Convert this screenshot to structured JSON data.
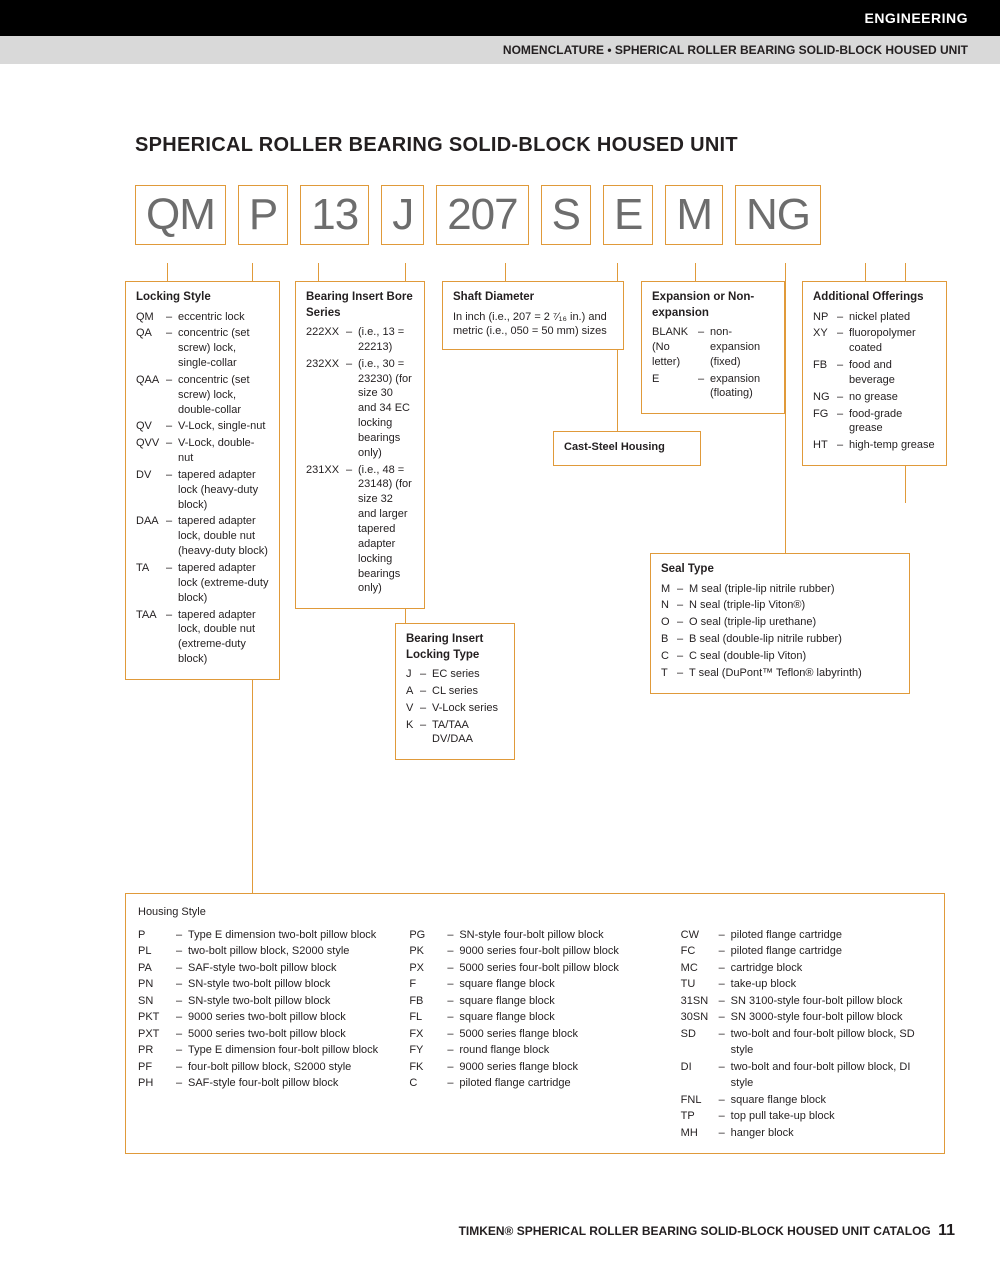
{
  "header": {
    "section": "ENGINEERING",
    "breadcrumb": "NOMENCLATURE • SPHERICAL ROLLER BEARING SOLID-BLOCK HOUSED UNIT"
  },
  "title": "SPHERICAL ROLLER BEARING SOLID-BLOCK HOUSED UNIT",
  "codes": [
    "QM",
    "P",
    "13",
    "J",
    "207",
    "S",
    "E",
    "M",
    "NG"
  ],
  "lockingStyle": {
    "title": "Locking Style",
    "items": [
      {
        "c": "QM",
        "d": "eccentric lock"
      },
      {
        "c": "QA",
        "d": "concentric (set screw) lock, single-collar"
      },
      {
        "c": "QAA",
        "d": "concentric (set screw) lock, double-collar"
      },
      {
        "c": "QV",
        "d": "V-Lock, single-nut"
      },
      {
        "c": "QVV",
        "d": "V-Lock, double-nut"
      },
      {
        "c": "DV",
        "d": "tapered adapter lock (heavy-duty block)"
      },
      {
        "c": "DAA",
        "d": "tapered adapter lock, double nut (heavy-duty block)"
      },
      {
        "c": "TA",
        "d": "tapered adapter lock (extreme-duty block)"
      },
      {
        "c": "TAA",
        "d": "tapered adapter lock, double nut (extreme-duty block)"
      }
    ]
  },
  "boreSeries": {
    "title": "Bearing Insert Bore Series",
    "items": [
      {
        "c": "222XX",
        "d": "(i.e., 13 = 22213)"
      },
      {
        "c": "232XX",
        "d": "(i.e., 30 = 23230) (for size 30 and 34 EC locking bearings only)"
      },
      {
        "c": "231XX",
        "d": "(i.e., 48 = 23148) (for size 32 and larger tapered adapter locking bearings only)"
      }
    ]
  },
  "shaftDiameter": {
    "title": "Shaft Diameter",
    "text": "In inch (i.e., 207 = 2 ⁷⁄₁₆ in.) and metric (i.e., 050 = 50 mm) sizes"
  },
  "expansion": {
    "title": "Expansion or Non-expansion",
    "items": [
      {
        "c": "BLANK (No letter)",
        "d": "non-expansion (fixed)"
      },
      {
        "c": "E",
        "d": "expansion (floating)"
      }
    ]
  },
  "castSteel": "Cast-Steel Housing",
  "additionalOfferings": {
    "title": "Additional Offerings",
    "items": [
      {
        "c": "NP",
        "d": "nickel plated"
      },
      {
        "c": "XY",
        "d": "fluoropolymer coated"
      },
      {
        "c": "FB",
        "d": "food and beverage"
      },
      {
        "c": "NG",
        "d": "no grease"
      },
      {
        "c": "FG",
        "d": "food-grade grease"
      },
      {
        "c": "HT",
        "d": "high-temp grease"
      }
    ]
  },
  "sealType": {
    "title": "Seal Type",
    "items": [
      {
        "c": "M",
        "d": "M seal (triple-lip nitrile rubber)"
      },
      {
        "c": "N",
        "d": "N seal (triple-lip Viton®)"
      },
      {
        "c": "O",
        "d": "O seal (triple-lip urethane)"
      },
      {
        "c": "B",
        "d": "B seal (double-lip nitrile rubber)"
      },
      {
        "c": "C",
        "d": "C seal (double-lip Viton)"
      },
      {
        "c": "T",
        "d": "T seal (DuPont™ Teflon® labyrinth)"
      }
    ]
  },
  "lockingType": {
    "title": "Bearing Insert Locking Type",
    "items": [
      {
        "c": "J",
        "d": "EC series"
      },
      {
        "c": "A",
        "d": "CL series"
      },
      {
        "c": "V",
        "d": "V-Lock series"
      },
      {
        "c": "K",
        "d": "TA/TAA DV/DAA"
      }
    ]
  },
  "housingStyle": {
    "title": "Housing Style",
    "col1": [
      {
        "c": "P",
        "d": "Type E dimension two-bolt pillow block"
      },
      {
        "c": "PL",
        "d": "two-bolt pillow block, S2000 style"
      },
      {
        "c": "PA",
        "d": "SAF-style two-bolt pillow block"
      },
      {
        "c": "PN",
        "d": "SN-style two-bolt pillow block"
      },
      {
        "c": "SN",
        "d": "SN-style two-bolt pillow block"
      },
      {
        "c": "PKT",
        "d": "9000 series two-bolt pillow block"
      },
      {
        "c": "PXT",
        "d": "5000 series two-bolt pillow block"
      },
      {
        "c": "PR",
        "d": "Type E dimension four-bolt pillow block"
      },
      {
        "c": "PF",
        "d": "four-bolt pillow block, S2000 style"
      },
      {
        "c": "PH",
        "d": "SAF-style four-bolt pillow block"
      }
    ],
    "col2": [
      {
        "c": "PG",
        "d": "SN-style four-bolt pillow block"
      },
      {
        "c": "PK",
        "d": "9000 series four-bolt pillow block"
      },
      {
        "c": "PX",
        "d": "5000 series four-bolt pillow block"
      },
      {
        "c": "F",
        "d": "square flange block"
      },
      {
        "c": "FB",
        "d": "square flange block"
      },
      {
        "c": "FL",
        "d": "square flange block"
      },
      {
        "c": "FX",
        "d": "5000 series flange block"
      },
      {
        "c": "FY",
        "d": "round flange block"
      },
      {
        "c": "FK",
        "d": "9000 series flange block"
      },
      {
        "c": "C",
        "d": "piloted flange cartridge"
      }
    ],
    "col3": [
      {
        "c": "CW",
        "d": "piloted flange cartridge"
      },
      {
        "c": "FC",
        "d": "piloted flange cartridge"
      },
      {
        "c": "MC",
        "d": "cartridge block"
      },
      {
        "c": "TU",
        "d": "take-up block"
      },
      {
        "c": "31SN",
        "d": "SN 3100-style four-bolt pillow block"
      },
      {
        "c": "30SN",
        "d": "SN 3000-style four-bolt pillow block"
      },
      {
        "c": "SD",
        "d": "two-bolt and four-bolt pillow block, SD style"
      },
      {
        "c": "DI",
        "d": "two-bolt and four-bolt pillow block, DI style"
      },
      {
        "c": "FNL",
        "d": "square flange block"
      },
      {
        "c": "TP",
        "d": "top pull take-up block"
      },
      {
        "c": "MH",
        "d": "hanger block"
      }
    ]
  },
  "footer": {
    "text": "TIMKEN® SPHERICAL ROLLER BEARING SOLID-BLOCK HOUSED UNIT CATALOG",
    "page": "11"
  },
  "colors": {
    "accent": "#e09a3a",
    "codeText": "#6d6d6d"
  }
}
